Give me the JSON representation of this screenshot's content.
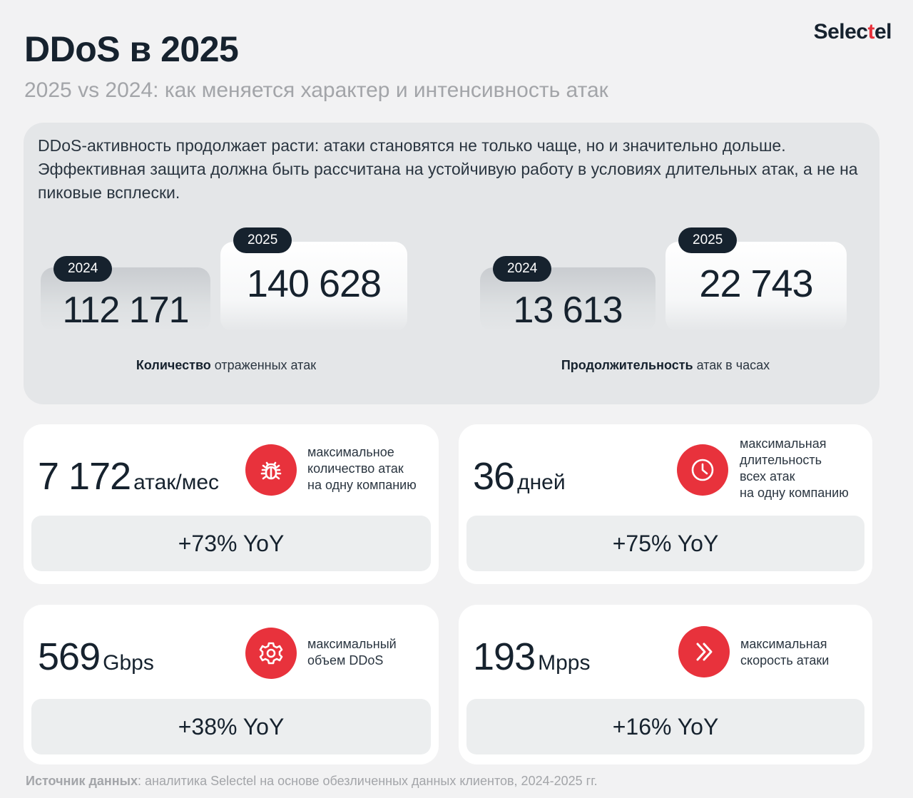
{
  "header": {
    "title": "DDoS в 2025",
    "subtitle": "2025 vs 2024: как меняется характер и интенсивность атак",
    "logo_main": "Selec",
    "logo_accent": "t",
    "logo_end": "el",
    "brand_color": "#e8323c"
  },
  "hero": {
    "text": "DDoS-активность продолжает расти: атаки становятся не только чаще, но и значительно дольше. Эффективная защита должна быть рассчитана на устойчивую работу в условиях длительных атак, а не на пиковые всплески.",
    "attacks": {
      "old_year": "2024",
      "old_value": "112 171",
      "new_year": "2025",
      "new_value": "140 628",
      "caption_bold": "Количество",
      "caption_rest": " отраженных атак"
    },
    "duration": {
      "old_year": "2024",
      "old_value": "13 613",
      "new_year": "2025",
      "new_value": "22 743",
      "caption_bold": "Продолжительность",
      "caption_rest": " атак в часах"
    }
  },
  "tiles": [
    {
      "value": "7 172",
      "unit": "атак/мес",
      "icon": "bug-icon",
      "desc": "максимальное\nколичество атак\nна одну компанию",
      "yoy": "+73% YoY"
    },
    {
      "value": "36",
      "unit": "дней",
      "icon": "clock-icon",
      "desc": "максимальная\nдлительность\nвсех атак\nна одну компанию",
      "yoy": "+75% YoY"
    },
    {
      "value": "569",
      "unit": "Gbps",
      "icon": "gear-icon",
      "desc": "максимальный\nобъем DDoS",
      "yoy": "+38% YoY"
    },
    {
      "value": "193",
      "unit": "Mpps",
      "icon": "double-chevron-right-icon",
      "desc": "максимальная\nскорость атаки",
      "yoy": "+16% YoY"
    }
  ],
  "footer": {
    "source_label": "Источник данных",
    "source_text": ": аналитика Selectel на основе обезличенных данных клиентов, 2024-2025 гг."
  }
}
